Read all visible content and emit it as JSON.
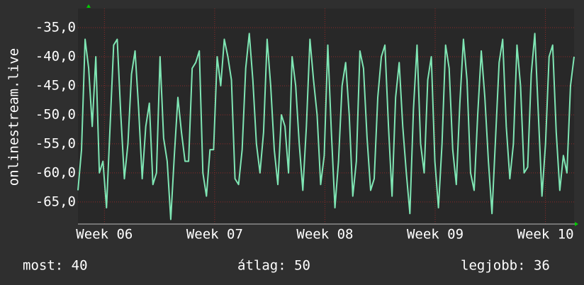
{
  "chart_data": {
    "type": "line",
    "y_label": "onlinestream.live",
    "series": [
      {
        "name": "onlinestream.live",
        "color": "#7fe6b4",
        "values": [
          -63,
          -56,
          -37,
          -42,
          -52,
          -40,
          -60,
          -58,
          -66,
          -52,
          -38,
          -37,
          -50,
          -61,
          -55,
          -43,
          -39,
          -49,
          -61,
          -52,
          -48,
          -62,
          -60,
          -40,
          -54,
          -58,
          -68,
          -57,
          -47,
          -53,
          -58,
          -58,
          -42,
          -41,
          -39,
          -60,
          -64,
          -56,
          -56,
          -40,
          -45,
          -37,
          -40,
          -44,
          -61,
          -62,
          -56,
          -42,
          -36,
          -44,
          -55,
          -60,
          -53,
          -37,
          -45,
          -56,
          -62,
          -50,
          -52,
          -60,
          -40,
          -45,
          -55,
          -63,
          -52,
          -37,
          -44,
          -50,
          -62,
          -57,
          -38,
          -53,
          -66,
          -58,
          -45,
          -41,
          -50,
          -64,
          -58,
          -39,
          -42,
          -54,
          -63,
          -61,
          -47,
          -40,
          -38,
          -52,
          -64,
          -47,
          -41,
          -52,
          -60,
          -67,
          -49,
          -38,
          -55,
          -60,
          -44,
          -40,
          -58,
          -66,
          -55,
          -38,
          -42,
          -56,
          -62,
          -48,
          -37,
          -44,
          -60,
          -63,
          -50,
          -39,
          -47,
          -58,
          -67,
          -54,
          -41,
          -37,
          -52,
          -61,
          -55,
          -38,
          -45,
          -60,
          -59,
          -43,
          -36,
          -50,
          -64,
          -55,
          -40,
          -38,
          -53,
          -63,
          -57,
          -60,
          -45,
          -40
        ]
      }
    ],
    "xlim": [
      5.76,
      10.26
    ],
    "xticks": [
      {
        "value": 6,
        "label": "Week 06"
      },
      {
        "value": 7,
        "label": "Week 07"
      },
      {
        "value": 8,
        "label": "Week 08"
      },
      {
        "value": 9,
        "label": "Week 09"
      },
      {
        "value": 10,
        "label": "Week 10"
      }
    ],
    "ylim": [
      -68.8,
      -31.7
    ],
    "yticks": [
      {
        "value": -65,
        "label": "-65,0"
      },
      {
        "value": -60,
        "label": "-60,0"
      },
      {
        "value": -55,
        "label": "-55,0"
      },
      {
        "value": -50,
        "label": "-50,0"
      },
      {
        "value": -45,
        "label": "-45,0"
      },
      {
        "value": -40,
        "label": "-40,0"
      },
      {
        "value": -35,
        "label": "-35,0"
      }
    ],
    "grid": true,
    "footer": [
      "most: 40",
      "átlag: 50",
      "legjobb: 36"
    ]
  }
}
